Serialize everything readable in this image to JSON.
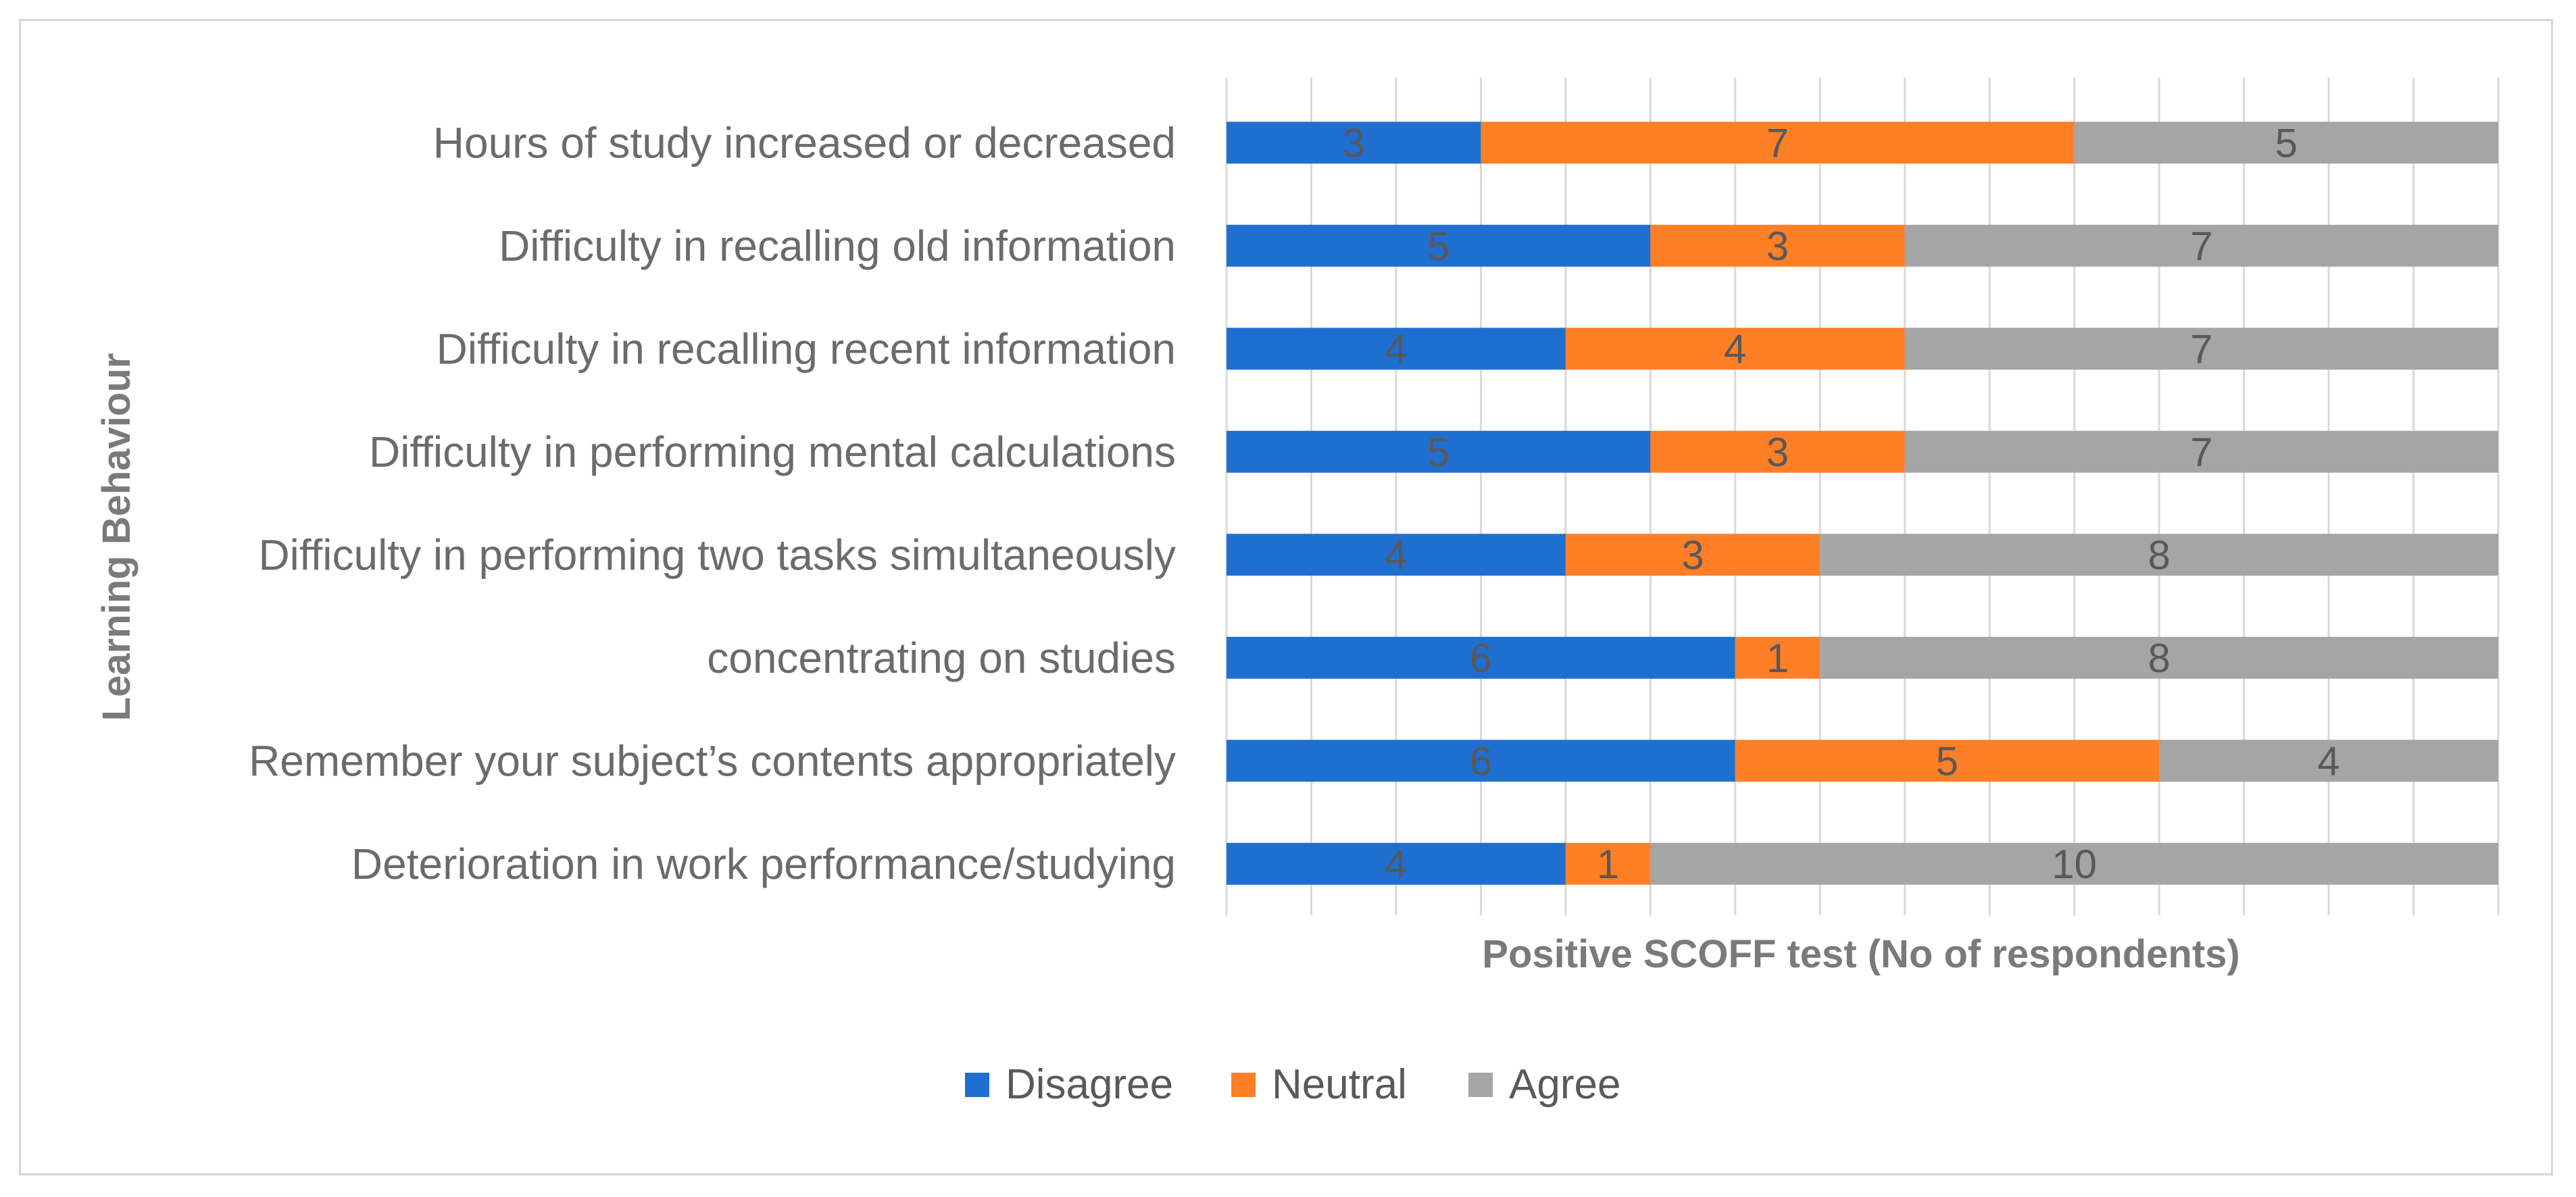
{
  "chart_data": {
    "type": "bar",
    "orientation": "horizontal",
    "stacked": true,
    "title": "",
    "xlabel": "Positive SCOFF test (No of respondents)",
    "ylabel": "Learning Behaviour",
    "xlim": [
      0,
      15
    ],
    "grid": true,
    "legend_position": "bottom",
    "categories": [
      "Hours of study increased or decreased",
      "Difficulty in recalling old information",
      "Difficulty in recalling recent information",
      "Difficulty in performing mental calculations",
      "Difficulty in performing two tasks simultaneously",
      "concentrating on studies",
      "Remember your subject’s contents appropriately",
      "Deterioration in work performance/studying"
    ],
    "series": [
      {
        "name": "Disagree",
        "color": "#1f6fd1",
        "values": [
          3,
          5,
          4,
          5,
          4,
          6,
          6,
          4
        ]
      },
      {
        "name": "Neutral",
        "color": "#ff7f27",
        "values": [
          7,
          3,
          4,
          3,
          3,
          1,
          5,
          1
        ]
      },
      {
        "name": "Agree",
        "color": "#a5a5a5",
        "values": [
          5,
          7,
          7,
          7,
          8,
          8,
          4,
          10
        ]
      }
    ]
  }
}
